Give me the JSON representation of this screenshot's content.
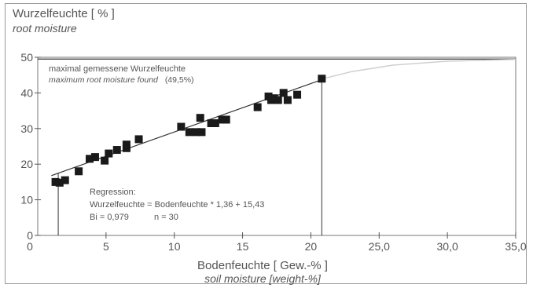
{
  "chart_data": {
    "type": "scatter",
    "ylabel": "Wurzelfeuchte [ % ]",
    "ylabel_sub": "root moisture",
    "xlabel": "Bodenfeuchte [ Gew.-% ]",
    "xlabel_sub": "soil moisture [weight-%]",
    "xlim": [
      0,
      35
    ],
    "ylim": [
      0,
      50
    ],
    "x_ticks": [
      {
        "value": 5,
        "label": "5"
      },
      {
        "value": 10,
        "label": "10"
      },
      {
        "value": 15,
        "label": "15"
      },
      {
        "value": 20,
        "label": "20"
      },
      {
        "value": 25,
        "label": "25,0"
      },
      {
        "value": 30,
        "label": "30,0"
      },
      {
        "value": 35,
        "label": "35,0"
      }
    ],
    "y_ticks": [
      {
        "value": 0,
        "label": "0"
      },
      {
        "value": 10,
        "label": "10"
      },
      {
        "value": 20,
        "label": "20"
      },
      {
        "value": 30,
        "label": "30"
      },
      {
        "value": 40,
        "label": "40"
      },
      {
        "value": 50,
        "label": "50"
      }
    ],
    "max_line": {
      "value": 49.5,
      "label": "maximal gemessene Wurzelfeuchte",
      "label_sub": "maximum root moisture found",
      "value_label": "(49,5%)"
    },
    "regression": {
      "title": "Regression:",
      "equation": "Wurzelfeuchte = Bodenfeuchte * 1,36 + 15,43",
      "stats": "Bi = 0,979",
      "n_label": "n = 30",
      "slope": 1.36,
      "intercept": 15.43,
      "x_range": [
        1.0,
        20.8
      ]
    },
    "guide_lines_x": [
      1.5,
      20.8
    ],
    "saturation_curve": [
      [
        20.8,
        43.9
      ],
      [
        23,
        46.0
      ],
      [
        26,
        47.8
      ],
      [
        30,
        48.9
      ],
      [
        35,
        49.4
      ]
    ],
    "points": [
      [
        1.3,
        15.0
      ],
      [
        1.6,
        14.8
      ],
      [
        2.0,
        15.5
      ],
      [
        3.0,
        18.0
      ],
      [
        3.8,
        21.5
      ],
      [
        4.2,
        22.0
      ],
      [
        4.9,
        21.0
      ],
      [
        5.2,
        23.0
      ],
      [
        5.8,
        24.0
      ],
      [
        6.5,
        24.5
      ],
      [
        6.5,
        25.5
      ],
      [
        7.4,
        27.0
      ],
      [
        10.5,
        30.5
      ],
      [
        11.1,
        29.0
      ],
      [
        11.6,
        29.0
      ],
      [
        12.0,
        29.0
      ],
      [
        11.9,
        33.0
      ],
      [
        12.7,
        31.5
      ],
      [
        13.0,
        31.5
      ],
      [
        13.5,
        32.5
      ],
      [
        13.8,
        32.5
      ],
      [
        16.1,
        36.0
      ],
      [
        16.9,
        39.0
      ],
      [
        17.1,
        38.0
      ],
      [
        17.3,
        38.5
      ],
      [
        17.6,
        38.0
      ],
      [
        18.0,
        40.0
      ],
      [
        18.3,
        38.0
      ],
      [
        19.0,
        39.5
      ],
      [
        20.8,
        44.0
      ]
    ]
  }
}
